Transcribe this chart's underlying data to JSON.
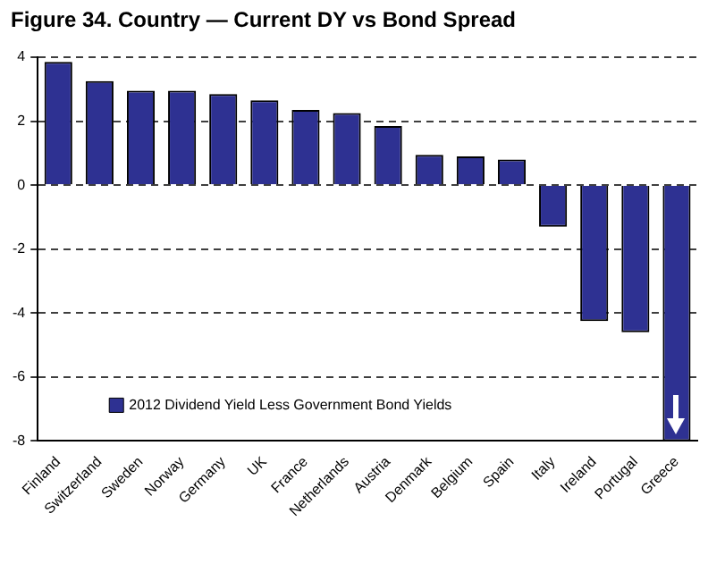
{
  "chart_data": {
    "type": "bar",
    "title": "Figure 34. Country — Current DY vs Bond Spread",
    "categories": [
      "Finland",
      "Switzerland",
      "Sweden",
      "Norway",
      "Germany",
      "UK",
      "France",
      "Netherlands",
      "Austria",
      "Denmark",
      "Belgium",
      "Spain",
      "Italy",
      "Ireland",
      "Portugal",
      "Greece"
    ],
    "series": [
      {
        "name": "2012 Dividend Yield Less Government Bond Yields",
        "color": "#2e3192",
        "values": [
          3.85,
          3.25,
          2.95,
          2.95,
          2.85,
          2.65,
          2.35,
          2.25,
          1.85,
          0.95,
          0.9,
          0.8,
          -1.3,
          -4.25,
          -4.6,
          -8
        ]
      }
    ],
    "ylim": [
      -8,
      4
    ],
    "yticks": [
      -8,
      -6,
      -4,
      -2,
      0,
      2,
      4
    ],
    "grid": "y",
    "legend": "bottom left"
  }
}
